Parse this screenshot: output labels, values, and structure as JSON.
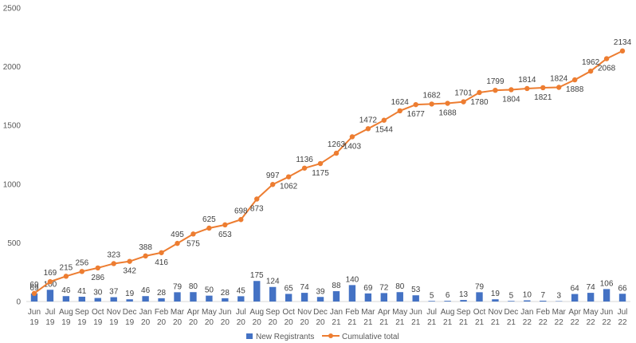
{
  "chart_data": {
    "type": "bar+line",
    "title": "",
    "xlabel": "",
    "ylabel": "",
    "ylim": [
      0,
      2500
    ],
    "yticks": [
      0,
      500,
      1000,
      1500,
      2000,
      2500
    ],
    "grid": false,
    "legend_position": "bottom",
    "categories": [
      [
        "Jun",
        "19"
      ],
      [
        "Jul",
        "19"
      ],
      [
        "Aug",
        "19"
      ],
      [
        "Sep",
        "19"
      ],
      [
        "Oct",
        "19"
      ],
      [
        "Nov",
        "19"
      ],
      [
        "Dec",
        "19"
      ],
      [
        "Jan",
        "20"
      ],
      [
        "Feb",
        "20"
      ],
      [
        "Mar",
        "20"
      ],
      [
        "Apr",
        "20"
      ],
      [
        "May",
        "20"
      ],
      [
        "Jun",
        "20"
      ],
      [
        "Jul",
        "20"
      ],
      [
        "Aug",
        "20"
      ],
      [
        "Sep",
        "20"
      ],
      [
        "Oct",
        "20"
      ],
      [
        "Nov",
        "20"
      ],
      [
        "Dec",
        "20"
      ],
      [
        "Jan",
        "21"
      ],
      [
        "Feb",
        "21"
      ],
      [
        "Mar",
        "21"
      ],
      [
        "Apr",
        "21"
      ],
      [
        "May",
        "21"
      ],
      [
        "Jun",
        "21"
      ],
      [
        "Jul",
        "21"
      ],
      [
        "Aug",
        "21"
      ],
      [
        "Sep",
        "21"
      ],
      [
        "Oct",
        "21"
      ],
      [
        "Nov",
        "21"
      ],
      [
        "Dec",
        "21"
      ],
      [
        "Jan",
        "22"
      ],
      [
        "Feb",
        "22"
      ],
      [
        "Mar",
        "22"
      ],
      [
        "Apr",
        "22"
      ],
      [
        "May",
        "22"
      ],
      [
        "Jun",
        "22"
      ],
      [
        "Jul",
        "22"
      ]
    ],
    "series": [
      {
        "name": "New Registrants",
        "type": "bar",
        "color": "#4472C4",
        "values": [
          69,
          100,
          46,
          41,
          30,
          37,
          19,
          46,
          28,
          79,
          80,
          50,
          28,
          45,
          175,
          124,
          65,
          74,
          39,
          88,
          140,
          69,
          72,
          80,
          53,
          5,
          6,
          13,
          79,
          19,
          5,
          10,
          7,
          3,
          64,
          74,
          106,
          66
        ]
      },
      {
        "name": "Cumulative total",
        "type": "line",
        "color": "#ED7D31",
        "values": [
          69,
          169,
          215,
          256,
          286,
          323,
          342,
          388,
          416,
          495,
          575,
          625,
          653,
          698,
          873,
          997,
          1062,
          1136,
          1175,
          1263,
          1403,
          1472,
          1544,
          1624,
          1677,
          1682,
          1688,
          1701,
          1780,
          1799,
          1804,
          1814,
          1821,
          1824,
          1888,
          1962,
          2068,
          2134
        ],
        "label_positions": [
          "above",
          "above",
          "above",
          "above",
          "below",
          "above",
          "below",
          "above",
          "below",
          "above",
          "below",
          "above",
          "below",
          "above",
          "below",
          "above",
          "below",
          "above",
          "below",
          "above",
          "below",
          "above",
          "below",
          "above",
          "below",
          "above",
          "below",
          "above",
          "below",
          "above",
          "below",
          "above",
          "below",
          "above",
          "below",
          "above",
          "below",
          "above"
        ]
      }
    ]
  }
}
